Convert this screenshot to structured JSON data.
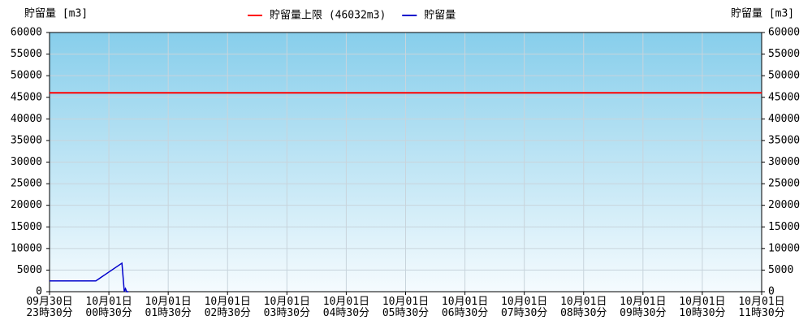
{
  "chart_data": {
    "type": "line",
    "y_label": "貯留量 [m3]",
    "y2_label": "貯留量 [m3]",
    "xlim": [
      0,
      12
    ],
    "xticks": [
      {
        "value": 0,
        "label": "09月30日\n23時30分"
      },
      {
        "value": 1,
        "label": "10月01日\n00時30分"
      },
      {
        "value": 2,
        "label": "10月01日\n01時30分"
      },
      {
        "value": 3,
        "label": "10月01日\n02時30分"
      },
      {
        "value": 4,
        "label": "10月01日\n03時30分"
      },
      {
        "value": 5,
        "label": "10月01日\n04時30分"
      },
      {
        "value": 6,
        "label": "10月01日\n05時30分"
      },
      {
        "value": 7,
        "label": "10月01日\n06時30分"
      },
      {
        "value": 8,
        "label": "10月01日\n07時30分"
      },
      {
        "value": 9,
        "label": "10月01日\n08時30分"
      },
      {
        "value": 10,
        "label": "10月01日\n09時30分"
      },
      {
        "value": 11,
        "label": "10月01日\n10時30分"
      },
      {
        "value": 12,
        "label": "10月01日\n11時30分"
      }
    ],
    "ylim": [
      0,
      60000
    ],
    "yticks": [
      0,
      5000,
      10000,
      15000,
      20000,
      25000,
      30000,
      35000,
      40000,
      45000,
      50000,
      55000,
      60000
    ],
    "y2lim": [
      0,
      60000
    ],
    "y2ticks": [
      0,
      5000,
      10000,
      15000,
      20000,
      25000,
      30000,
      35000,
      40000,
      45000,
      50000,
      55000,
      60000
    ],
    "grid": true,
    "legend": "top",
    "series": [
      {
        "name": "貯留量上限 (46032m3)",
        "color": "#ff0000",
        "x": [
          0,
          12
        ],
        "values": [
          46032,
          46032
        ]
      },
      {
        "name": "貯留量",
        "color": "#0000cc",
        "x": [
          0,
          0.78,
          1.22,
          1.26,
          1.28,
          1.3,
          1.33
        ],
        "values": [
          2500,
          2500,
          6600,
          0,
          700,
          0,
          0
        ]
      }
    ]
  }
}
